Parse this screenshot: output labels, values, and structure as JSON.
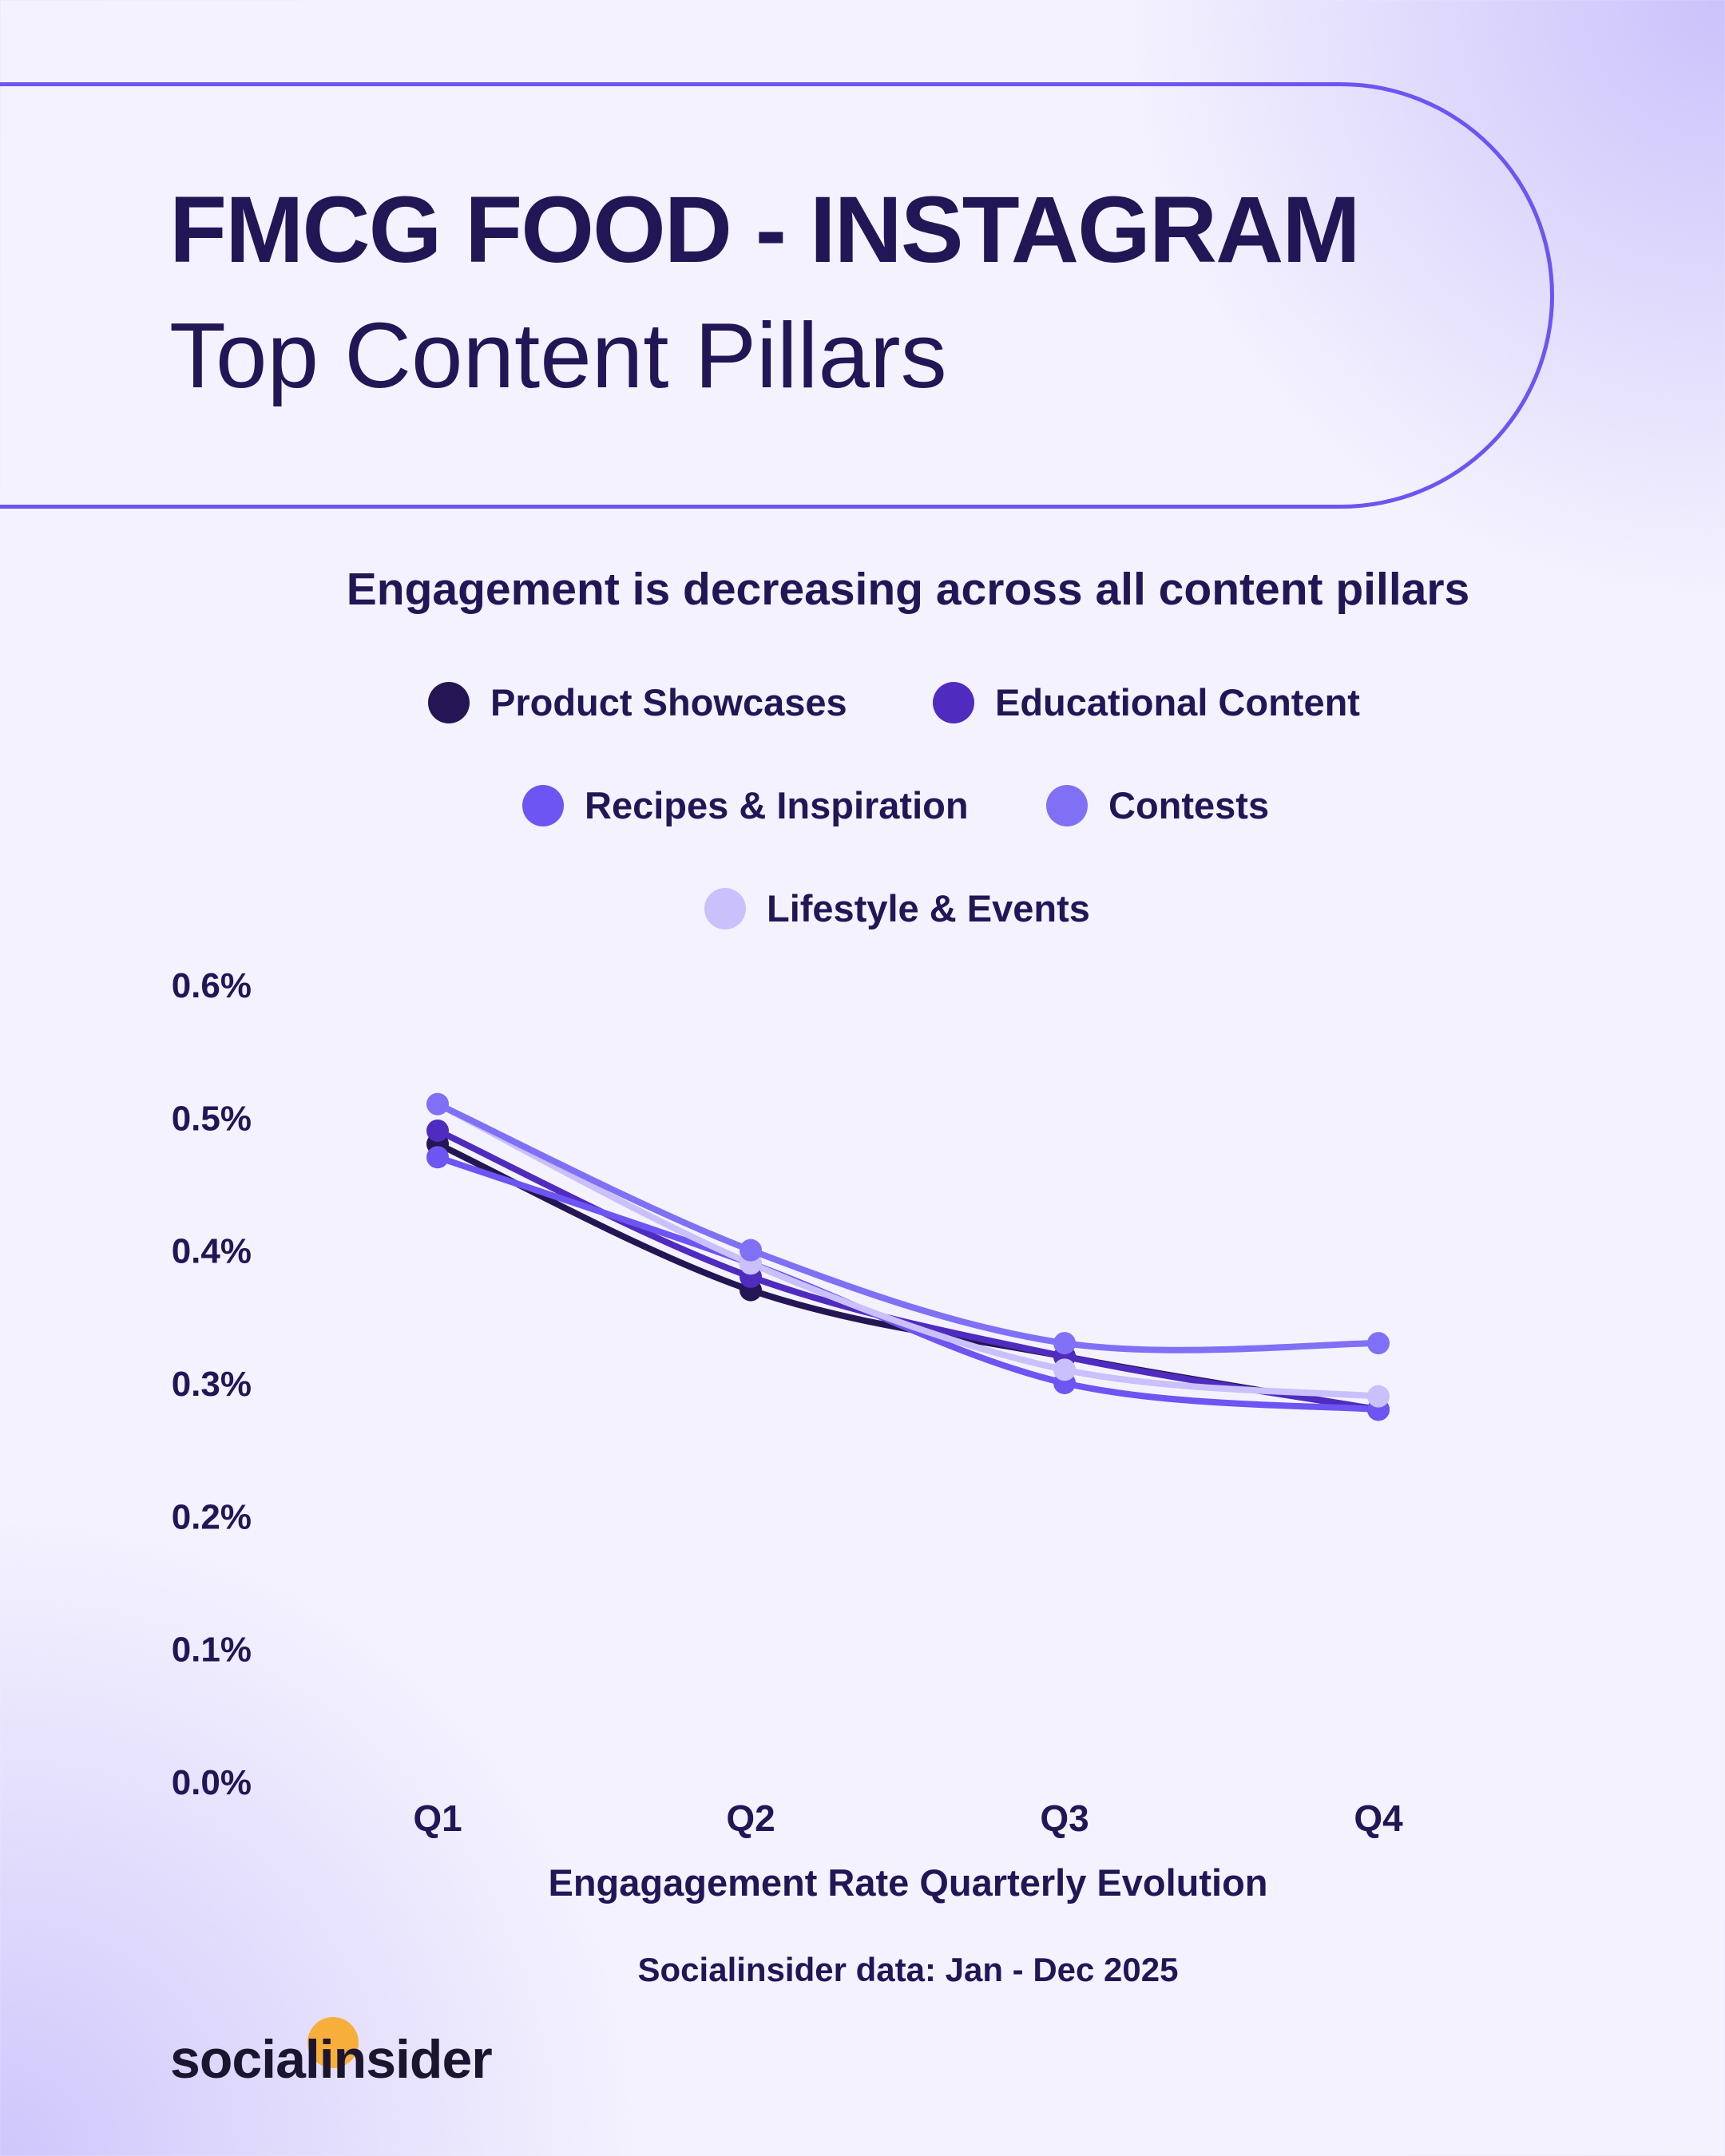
{
  "header": {
    "title": "FMCG FOOD - INSTAGRAM",
    "subtitle": "Top Content Pillars"
  },
  "chart_data": {
    "type": "line",
    "title": "Engagement is decreasing across all content pillars",
    "xlabel": "Engagagement Rate Quarterly Evolution",
    "ylabel": "",
    "categories": [
      "Q1",
      "Q2",
      "Q3",
      "Q4"
    ],
    "yticks": [
      "0.0%",
      "0.1%",
      "0.2%",
      "0.3%",
      "0.4%",
      "0.5%",
      "0.6%"
    ],
    "ylim": [
      0,
      0.6
    ],
    "unit": "%",
    "grid": false,
    "legend_position": "top-center",
    "series": [
      {
        "name": "Product Showcases",
        "color": "#241654",
        "values": [
          0.48,
          0.37,
          0.32,
          0.28
        ]
      },
      {
        "name": "Educational Content",
        "color": "#4f2bbf",
        "values": [
          0.49,
          0.38,
          0.32,
          0.28
        ]
      },
      {
        "name": "Recipes & Inspiration",
        "color": "#6c55f2",
        "values": [
          0.47,
          0.39,
          0.3,
          0.28
        ]
      },
      {
        "name": "Contests",
        "color": "#8070f5",
        "values": [
          0.51,
          0.4,
          0.33,
          0.33
        ]
      },
      {
        "name": "Lifestyle & Events",
        "color": "#c9c0fc",
        "values": [
          0.51,
          0.39,
          0.31,
          0.29
        ]
      }
    ]
  },
  "source": "Socialinsider data: Jan - Dec 2025",
  "logo": {
    "text": "socialinsider"
  }
}
